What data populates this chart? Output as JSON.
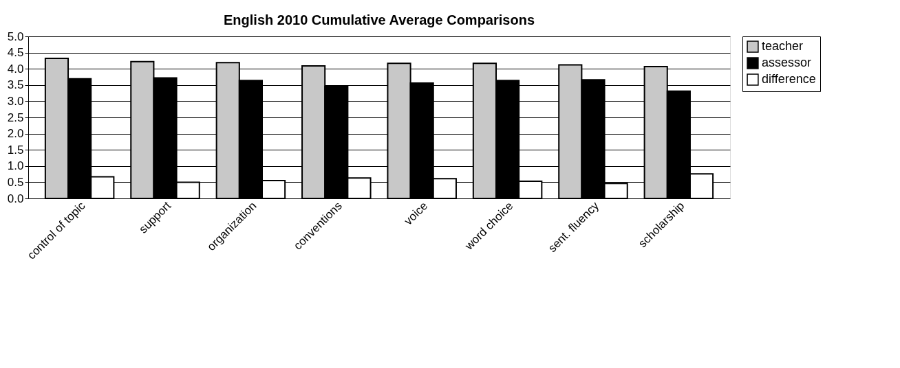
{
  "chart_data": {
    "type": "bar",
    "title": "English 2010 Cumulative Average Comparisons",
    "categories": [
      "control of topic",
      "support",
      "organization",
      "conventions",
      "voice",
      "word choice",
      "sent. fluency",
      "scholarship"
    ],
    "series": [
      {
        "name": "teacher",
        "color": "#c8c8c8",
        "values": [
          4.32,
          4.22,
          4.19,
          4.09,
          4.17,
          4.17,
          4.12,
          4.07
        ]
      },
      {
        "name": "assessor",
        "color": "#000000",
        "values": [
          3.69,
          3.72,
          3.64,
          3.46,
          3.56,
          3.64,
          3.66,
          3.31
        ]
      },
      {
        "name": "difference",
        "color": "#ffffff",
        "values": [
          0.67,
          0.5,
          0.55,
          0.63,
          0.61,
          0.53,
          0.46,
          0.76
        ]
      }
    ],
    "ylim": [
      0,
      5
    ],
    "yticks": [
      {
        "value": 0,
        "label": "0.0"
      },
      {
        "value": 0.5,
        "label": "0.5"
      },
      {
        "value": 1,
        "label": "1.0"
      },
      {
        "value": 1.5,
        "label": "1.5"
      },
      {
        "value": 2,
        "label": "2.0"
      },
      {
        "value": 2.5,
        "label": "2.5"
      },
      {
        "value": 3,
        "label": "3.0"
      },
      {
        "value": 3.5,
        "label": "3.5"
      },
      {
        "value": 4,
        "label": "4.0"
      },
      {
        "value": 4.5,
        "label": "4.5"
      },
      {
        "value": 5,
        "label": "5.0"
      }
    ],
    "grid": "y",
    "legend": "right"
  }
}
